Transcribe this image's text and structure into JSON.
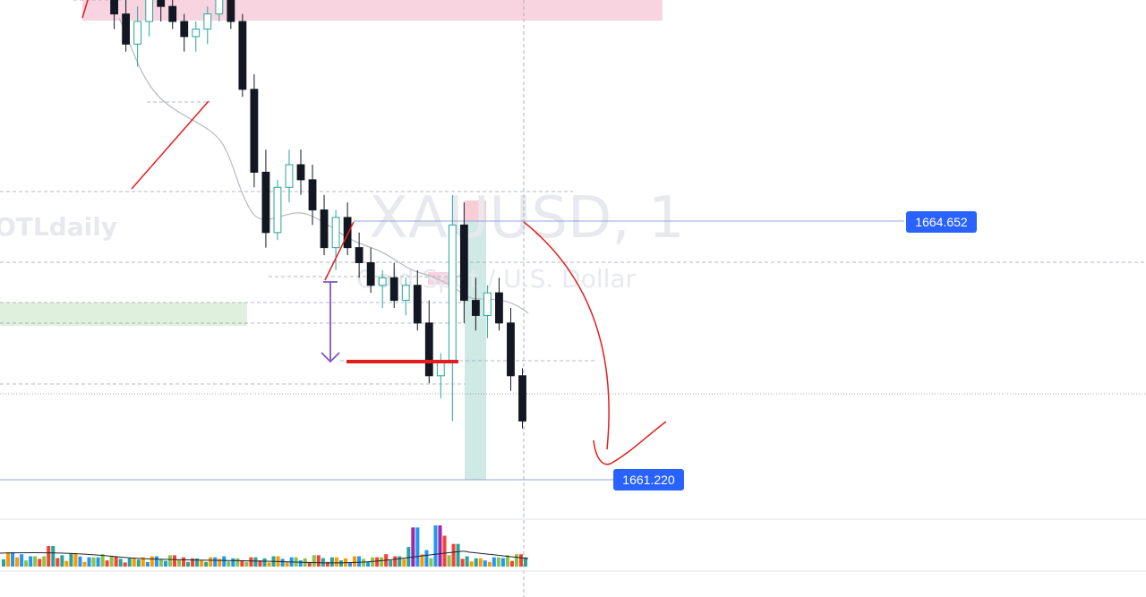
{
  "watermark": {
    "symbol": "XAUUSD, 1",
    "description": "Gold Spot / U.S. Dollar",
    "author": "OTLdaily"
  },
  "price_labels": {
    "upper": "1664.652",
    "lower": "1661.220"
  },
  "colors": {
    "up_candle": "#26a69a",
    "down_candle": "#131722",
    "supply_zone": "#f8c8d6",
    "demand_zone": "#d6ecd6",
    "target_zone": "#cde8e3",
    "price_label_bg": "#2962ff",
    "drawing_red": "#e41e1e",
    "measure_purple": "#7e57c2",
    "volume_purple": "#9c27b0",
    "volume_orange": "#ff9800"
  },
  "chart_data": {
    "type": "candlestick",
    "symbol": "XAUUSD",
    "timeframe": "1",
    "ylim": [
      1660.4,
      1669.8
    ],
    "visible_prices": [
      1664.652,
      1661.22
    ],
    "candles": [
      [
        1670.0,
        1670.2,
        1669.7,
        1669.9
      ],
      [
        1669.9,
        1670.1,
        1669.6,
        1669.8
      ],
      [
        1669.8,
        1669.9,
        1669.4,
        1669.5
      ],
      [
        1669.5,
        1669.6,
        1667.2,
        1667.4
      ],
      [
        1667.4,
        1667.6,
        1666.9,
        1667.0
      ],
      [
        1667.0,
        1667.5,
        1666.7,
        1667.3
      ],
      [
        1667.3,
        1667.8,
        1667.1,
        1667.6
      ],
      [
        1667.6,
        1667.9,
        1667.3,
        1667.5
      ],
      [
        1667.5,
        1667.7,
        1667.2,
        1667.3
      ],
      [
        1667.3,
        1667.4,
        1666.9,
        1667.1
      ],
      [
        1667.1,
        1667.3,
        1666.9,
        1667.2
      ],
      [
        1667.2,
        1667.5,
        1667.0,
        1667.4
      ],
      [
        1667.4,
        1667.8,
        1667.3,
        1667.7
      ],
      [
        1667.7,
        1667.8,
        1667.2,
        1667.3
      ],
      [
        1667.3,
        1667.4,
        1666.3,
        1666.4
      ],
      [
        1666.4,
        1666.6,
        1665.1,
        1665.3
      ],
      [
        1665.3,
        1665.6,
        1664.3,
        1664.5
      ],
      [
        1664.5,
        1665.2,
        1664.4,
        1665.1
      ],
      [
        1665.1,
        1665.6,
        1664.9,
        1665.4
      ],
      [
        1665.4,
        1665.6,
        1665.0,
        1665.2
      ],
      [
        1665.2,
        1665.4,
        1664.6,
        1664.8
      ],
      [
        1664.8,
        1665.0,
        1664.2,
        1664.3
      ],
      [
        1664.3,
        1664.8,
        1664.0,
        1664.7
      ],
      [
        1664.7,
        1664.9,
        1664.2,
        1664.3
      ],
      [
        1664.3,
        1664.5,
        1663.9,
        1664.1
      ],
      [
        1664.1,
        1664.3,
        1663.7,
        1663.8
      ],
      [
        1663.8,
        1664.0,
        1663.5,
        1663.9
      ],
      [
        1663.9,
        1664.1,
        1663.5,
        1663.6
      ],
      [
        1663.6,
        1663.9,
        1663.4,
        1663.8
      ],
      [
        1663.8,
        1664.0,
        1663.2,
        1663.3
      ],
      [
        1663.3,
        1663.6,
        1662.5,
        1662.6
      ],
      [
        1662.6,
        1662.9,
        1662.3,
        1662.8
      ],
      [
        1662.8,
        1665.0,
        1662.0,
        1664.6
      ],
      [
        1664.6,
        1664.9,
        1663.3,
        1663.6
      ],
      [
        1663.6,
        1663.9,
        1663.2,
        1663.4
      ],
      [
        1663.4,
        1663.8,
        1663.1,
        1663.7
      ],
      [
        1663.7,
        1663.9,
        1663.2,
        1663.3
      ],
      [
        1663.3,
        1663.5,
        1662.4,
        1662.6
      ],
      [
        1662.6,
        1662.7,
        1661.9,
        1662.0
      ]
    ],
    "volume": [
      14,
      12,
      10,
      20,
      11,
      13,
      9,
      12,
      10,
      8,
      9,
      10,
      11,
      9,
      8,
      9,
      10,
      8,
      9,
      8,
      10,
      9,
      8,
      11,
      9,
      8,
      10,
      9,
      12,
      10,
      38,
      16,
      40,
      22,
      10,
      8,
      9,
      11,
      12
    ]
  }
}
